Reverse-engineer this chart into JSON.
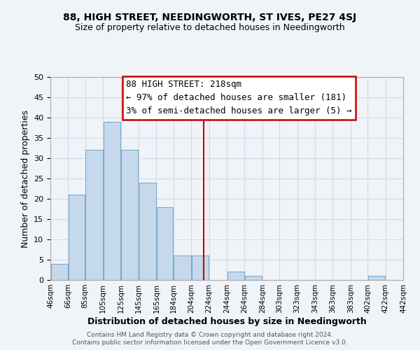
{
  "title": "88, HIGH STREET, NEEDINGWORTH, ST IVES, PE27 4SJ",
  "subtitle": "Size of property relative to detached houses in Needingworth",
  "xlabel": "Distribution of detached houses by size in Needingworth",
  "ylabel": "Number of detached properties",
  "bar_left_edges": [
    46,
    66,
    85,
    105,
    125,
    145,
    165,
    184,
    204,
    244,
    264,
    284,
    303,
    323,
    343,
    363,
    383,
    402,
    422
  ],
  "bar_widths": [
    20,
    19,
    20,
    20,
    20,
    20,
    19,
    20,
    20,
    20,
    20,
    19,
    20,
    20,
    20,
    20,
    19,
    20,
    20
  ],
  "bar_heights": [
    4,
    21,
    32,
    39,
    32,
    24,
    18,
    6,
    6,
    2,
    1,
    0,
    0,
    0,
    0,
    0,
    0,
    1,
    0
  ],
  "bar_color": "#c6d9ec",
  "bar_edgecolor": "#7aabcc",
  "grid_color": "#d0dae8",
  "vline_x": 218,
  "vline_color": "#cc0000",
  "xlim": [
    46,
    442
  ],
  "ylim": [
    0,
    50
  ],
  "yticks": [
    0,
    5,
    10,
    15,
    20,
    25,
    30,
    35,
    40,
    45,
    50
  ],
  "xtick_labels": [
    "46sqm",
    "66sqm",
    "85sqm",
    "105sqm",
    "125sqm",
    "145sqm",
    "165sqm",
    "184sqm",
    "204sqm",
    "224sqm",
    "244sqm",
    "264sqm",
    "284sqm",
    "303sqm",
    "323sqm",
    "343sqm",
    "363sqm",
    "383sqm",
    "402sqm",
    "422sqm",
    "442sqm"
  ],
  "xtick_positions": [
    46,
    66,
    85,
    105,
    125,
    145,
    165,
    184,
    204,
    224,
    244,
    264,
    284,
    303,
    323,
    343,
    363,
    383,
    402,
    422,
    442
  ],
  "annotation_title": "88 HIGH STREET: 218sqm",
  "annotation_line1": "← 97% of detached houses are smaller (181)",
  "annotation_line2": "3% of semi-detached houses are larger (5) →",
  "footer1": "Contains HM Land Registry data © Crown copyright and database right 2024.",
  "footer2": "Contains public sector information licensed under the Open Government Licence v3.0.",
  "background_color": "#f0f4f8",
  "title_fontsize": 10,
  "subtitle_fontsize": 9,
  "annotation_fontsize": 9
}
